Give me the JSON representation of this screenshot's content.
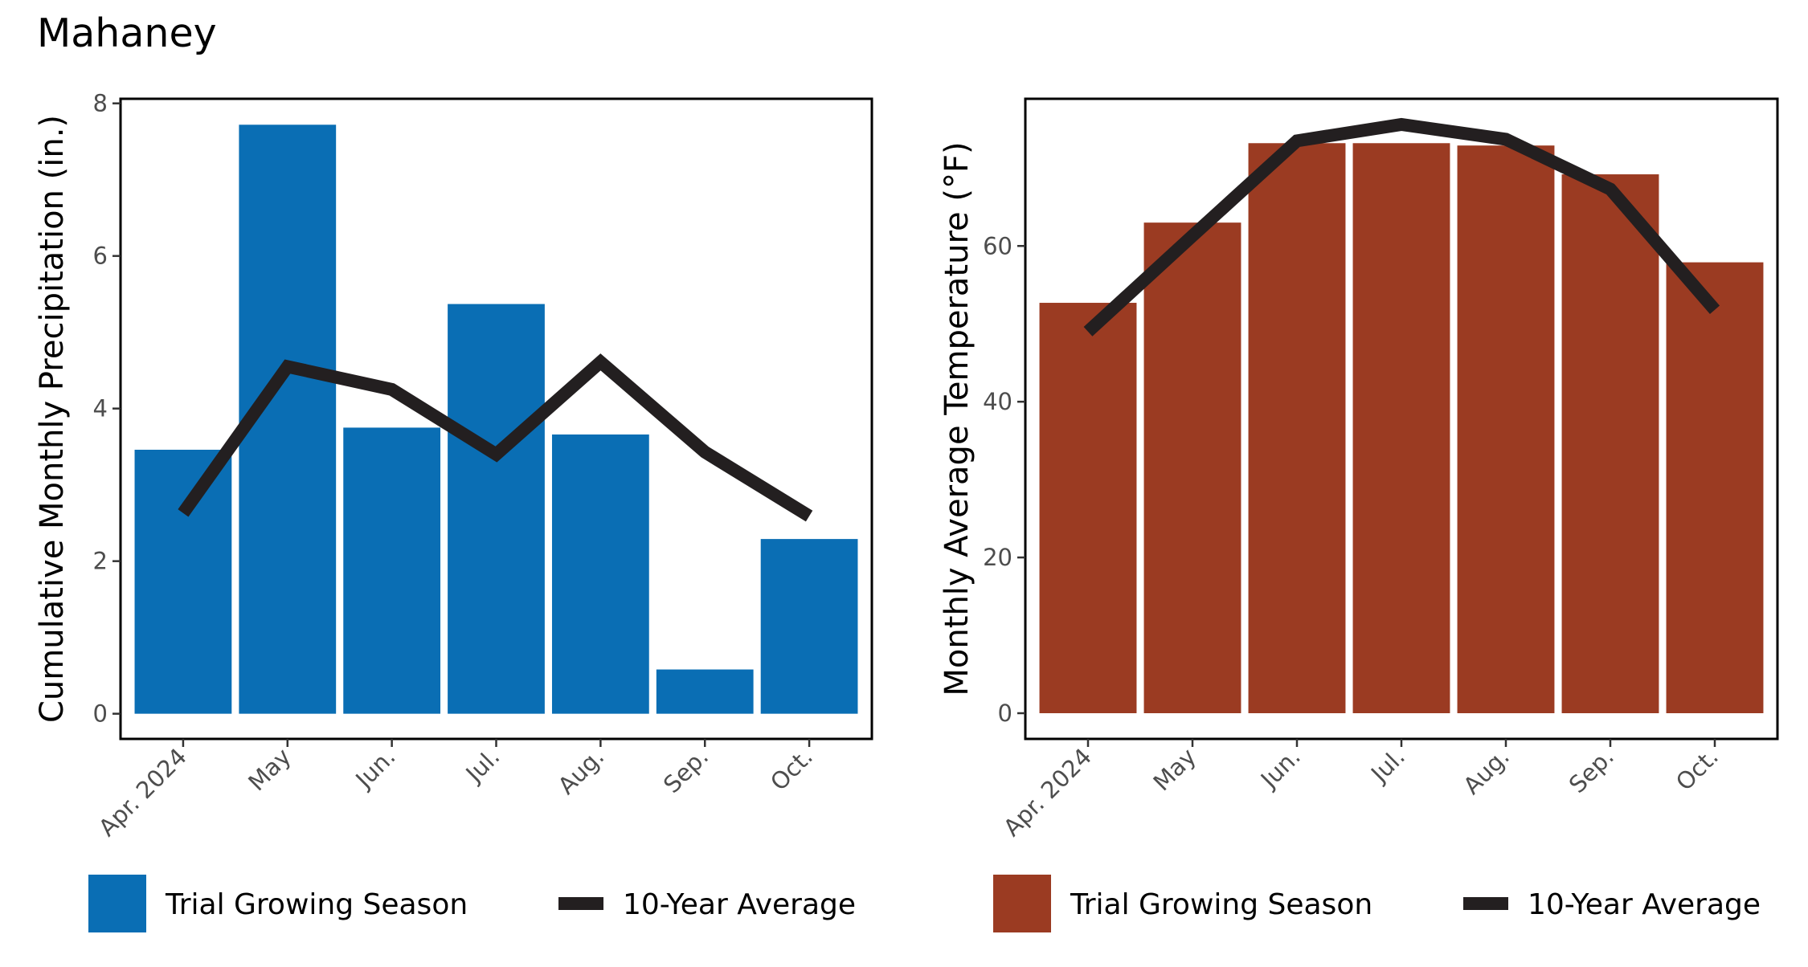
{
  "title": "Mahaney",
  "chart_data": [
    {
      "type": "bar",
      "categories": [
        "Apr. 2024",
        "May",
        "Jun.",
        "Jul.",
        "Aug.",
        "Sep.",
        "Oct."
      ],
      "ylabel": "Cumulative Monthly Precipitation (in.)",
      "xlabel": "",
      "ylim": [
        -0.33,
        8.06
      ],
      "yticks": [
        0,
        2,
        4,
        6,
        8
      ],
      "color": "#0a6eb4",
      "series": [
        {
          "name": "Trial Growing Season",
          "type": "bar",
          "values": [
            3.46,
            7.72,
            3.75,
            5.37,
            3.66,
            0.58,
            2.29
          ]
        },
        {
          "name": "10-Year Average",
          "type": "line",
          "values": [
            2.63,
            4.55,
            4.25,
            3.4,
            4.61,
            3.43,
            2.59
          ]
        }
      ],
      "legend": [
        "Trial Growing Season",
        "10-Year Average"
      ],
      "legend_position": "bottom"
    },
    {
      "type": "bar",
      "categories": [
        "Apr. 2024",
        "May",
        "Jun.",
        "Jul.",
        "Aug.",
        "Sep.",
        "Oct."
      ],
      "ylabel": "Monthly Average Temperature  (°F)",
      "xlabel": "",
      "ylim": [
        -3.3,
        78.9
      ],
      "yticks": [
        0,
        20,
        40,
        60
      ],
      "color": "#9b3b22",
      "series": [
        {
          "name": "Trial Growing Season",
          "type": "bar",
          "values": [
            52.7,
            63.0,
            73.2,
            73.2,
            72.9,
            69.2,
            57.9
          ]
        },
        {
          "name": "10-Year Average",
          "type": "line",
          "values": [
            49.0,
            61.3,
            73.5,
            75.6,
            73.7,
            67.3,
            51.8
          ]
        }
      ],
      "legend": [
        "Trial Growing Season",
        "10-Year Average"
      ],
      "legend_position": "bottom"
    }
  ]
}
